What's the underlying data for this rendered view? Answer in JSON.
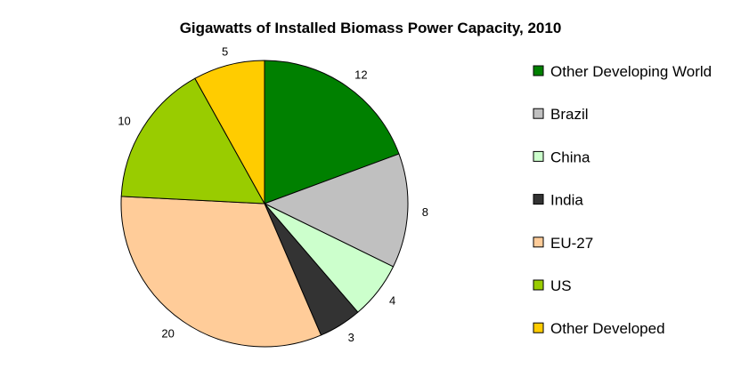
{
  "chart_data": {
    "type": "pie",
    "title": "Gigawatts of Installed Biomass Power Capacity, 2010",
    "legend_position": "right",
    "slices": [
      {
        "label": "Other Developing World",
        "value": 12,
        "color": "#008000"
      },
      {
        "label": "Brazil",
        "value": 8,
        "color": "#c0c0c0"
      },
      {
        "label": "China",
        "value": 4,
        "color": "#ccffcc"
      },
      {
        "label": "India",
        "value": 3,
        "color": "#333333"
      },
      {
        "label": "EU-27",
        "value": 20,
        "color": "#ffcc99"
      },
      {
        "label": "US",
        "value": 10,
        "color": "#99cc00"
      },
      {
        "label": "Other Developed",
        "value": 5,
        "color": "#ffcc00"
      }
    ]
  }
}
